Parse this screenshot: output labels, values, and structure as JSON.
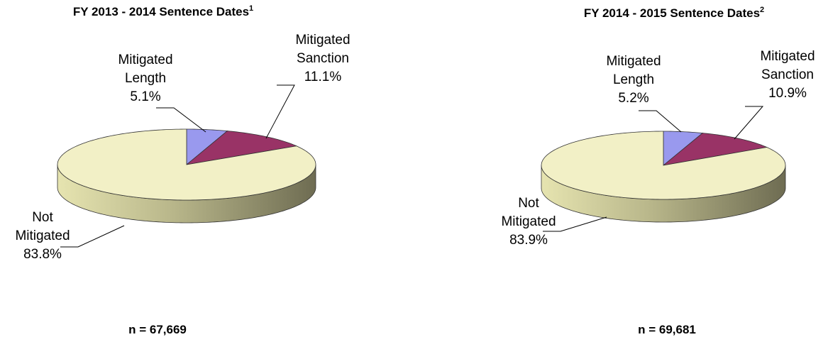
{
  "chart_data": [
    {
      "type": "pie3d",
      "title": "FY 2013 - 2014 Sentence Dates",
      "title_note": "1",
      "categories": [
        "Mitigated Length",
        "Mitigated Sanction",
        "Not Mitigated"
      ],
      "values": [
        5.1,
        11.1,
        83.8
      ],
      "value_labels": [
        "5.1%",
        "11.1%",
        "83.8%"
      ],
      "colors": [
        "#9999ee",
        "#993366",
        "#f2f0c6"
      ],
      "annotation": "n = 67,669"
    },
    {
      "type": "pie3d",
      "title": "FY 2014 - 2015 Sentence Dates",
      "title_note": "2",
      "categories": [
        "Mitigated Length",
        "Mitigated Sanction",
        "Not Mitigated"
      ],
      "values": [
        5.2,
        10.9,
        83.9
      ],
      "value_labels": [
        "5.2%",
        "10.9%",
        "83.9%"
      ],
      "colors": [
        "#9999ee",
        "#993366",
        "#f2f0c6"
      ],
      "annotation": "n = 69,681"
    }
  ]
}
